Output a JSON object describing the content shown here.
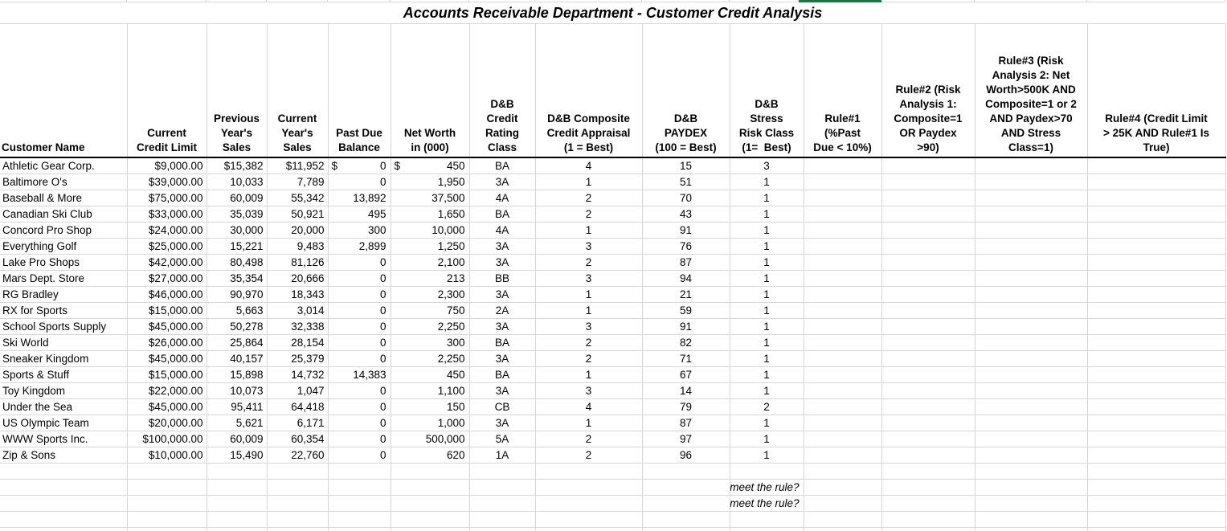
{
  "title": "Accounts Receivable Department - Customer Credit Analysis",
  "columns": [
    {
      "id": "customer_name",
      "label": "Customer Name"
    },
    {
      "id": "credit_limit",
      "label": "Current\nCredit Limit"
    },
    {
      "id": "prev_sales",
      "label": "Previous\nYear's\nSales"
    },
    {
      "id": "curr_sales",
      "label": "Current\nYear's\nSales"
    },
    {
      "id": "past_due",
      "label": "Past Due\nBalance"
    },
    {
      "id": "net_worth",
      "label": "Net Worth\nin (000)"
    },
    {
      "id": "rating_class",
      "label": "D&B\nCredit\nRating\nClass"
    },
    {
      "id": "composite",
      "label": "D&B Composite\nCredit Appraisal\n(1 = Best)"
    },
    {
      "id": "paydex",
      "label": "D&B\nPAYDEX\n(100 = Best)"
    },
    {
      "id": "stress",
      "label": "D&B\nStress\nRisk Class\n(1=  Best)"
    },
    {
      "id": "rule1",
      "label": "Rule#1\n(%Past\nDue < 10%)"
    },
    {
      "id": "rule2",
      "label": "Rule#2 (Risk\nAnalysis 1:\nComposite=1\nOR Paydex\n>90)"
    },
    {
      "id": "rule3",
      "label": "Rule#3 (Risk\nAnalysis 2: Net\nWorth>500K AND\nComposite=1 or 2\nAND Paydex>70\nAND Stress\nClass=1)"
    },
    {
      "id": "rule4",
      "label": "Rule#4 (Credit Limit\n> 25K AND Rule#1 Is\nTrue)"
    }
  ],
  "rows": [
    {
      "customer_name": "Athletic Gear Corp.",
      "credit_limit": "$9,000.00",
      "prev_sales": "$15,382",
      "curr_sales": "$11,952",
      "past_due": {
        "prefix": "$",
        "value": "0"
      },
      "net_worth": {
        "prefix": "$",
        "value": "450"
      },
      "rating_class": "BA",
      "composite": "4",
      "paydex": "15",
      "stress": "3",
      "rule1": "",
      "rule2": "",
      "rule3": "",
      "rule4": ""
    },
    {
      "customer_name": "Baltimore O's",
      "credit_limit": "$39,000.00",
      "prev_sales": "10,033",
      "curr_sales": "7,789",
      "past_due": {
        "prefix": "",
        "value": "0"
      },
      "net_worth": {
        "prefix": "",
        "value": "1,950"
      },
      "rating_class": "3A",
      "composite": "1",
      "paydex": "51",
      "stress": "1",
      "rule1": "",
      "rule2": "",
      "rule3": "",
      "rule4": ""
    },
    {
      "customer_name": "Baseball & More",
      "credit_limit": "$75,000.00",
      "prev_sales": "60,009",
      "curr_sales": "55,342",
      "past_due": {
        "prefix": "",
        "value": "13,892"
      },
      "net_worth": {
        "prefix": "",
        "value": "37,500"
      },
      "rating_class": "4A",
      "composite": "2",
      "paydex": "70",
      "stress": "1",
      "rule1": "",
      "rule2": "",
      "rule3": "",
      "rule4": ""
    },
    {
      "customer_name": "Canadian Ski Club",
      "credit_limit": "$33,000.00",
      "prev_sales": "35,039",
      "curr_sales": "50,921",
      "past_due": {
        "prefix": "",
        "value": "495"
      },
      "net_worth": {
        "prefix": "",
        "value": "1,650"
      },
      "rating_class": "BA",
      "composite": "2",
      "paydex": "43",
      "stress": "1",
      "rule1": "",
      "rule2": "",
      "rule3": "",
      "rule4": ""
    },
    {
      "customer_name": "Concord Pro Shop",
      "credit_limit": "$24,000.00",
      "prev_sales": "30,000",
      "curr_sales": "20,000",
      "past_due": {
        "prefix": "",
        "value": "300"
      },
      "net_worth": {
        "prefix": "",
        "value": "10,000"
      },
      "rating_class": "4A",
      "composite": "1",
      "paydex": "91",
      "stress": "1",
      "rule1": "",
      "rule2": "",
      "rule3": "",
      "rule4": ""
    },
    {
      "customer_name": "Everything Golf",
      "credit_limit": "$25,000.00",
      "prev_sales": "15,221",
      "curr_sales": "9,483",
      "past_due": {
        "prefix": "",
        "value": "2,899"
      },
      "net_worth": {
        "prefix": "",
        "value": "1,250"
      },
      "rating_class": "3A",
      "composite": "3",
      "paydex": "76",
      "stress": "1",
      "rule1": "",
      "rule2": "",
      "rule3": "",
      "rule4": ""
    },
    {
      "customer_name": "Lake Pro Shops",
      "credit_limit": "$42,000.00",
      "prev_sales": "80,498",
      "curr_sales": "81,126",
      "past_due": {
        "prefix": "",
        "value": "0"
      },
      "net_worth": {
        "prefix": "",
        "value": "2,100"
      },
      "rating_class": "3A",
      "composite": "2",
      "paydex": "87",
      "stress": "1",
      "rule1": "",
      "rule2": "",
      "rule3": "",
      "rule4": ""
    },
    {
      "customer_name": "Mars Dept. Store",
      "credit_limit": "$27,000.00",
      "prev_sales": "35,354",
      "curr_sales": "20,666",
      "past_due": {
        "prefix": "",
        "value": "0"
      },
      "net_worth": {
        "prefix": "",
        "value": "213"
      },
      "rating_class": "BB",
      "composite": "3",
      "paydex": "94",
      "stress": "1",
      "rule1": "",
      "rule2": "",
      "rule3": "",
      "rule4": ""
    },
    {
      "customer_name": "RG Bradley",
      "credit_limit": "$46,000.00",
      "prev_sales": "90,970",
      "curr_sales": "18,343",
      "past_due": {
        "prefix": "",
        "value": "0"
      },
      "net_worth": {
        "prefix": "",
        "value": "2,300"
      },
      "rating_class": "3A",
      "composite": "1",
      "paydex": "21",
      "stress": "1",
      "rule1": "",
      "rule2": "",
      "rule3": "",
      "rule4": ""
    },
    {
      "customer_name": "RX for Sports",
      "credit_limit": "$15,000.00",
      "prev_sales": "5,663",
      "curr_sales": "3,014",
      "past_due": {
        "prefix": "",
        "value": "0"
      },
      "net_worth": {
        "prefix": "",
        "value": "750"
      },
      "rating_class": "2A",
      "composite": "1",
      "paydex": "59",
      "stress": "1",
      "rule1": "",
      "rule2": "",
      "rule3": "",
      "rule4": ""
    },
    {
      "customer_name": "School Sports Supply",
      "credit_limit": "$45,000.00",
      "prev_sales": "50,278",
      "curr_sales": "32,338",
      "past_due": {
        "prefix": "",
        "value": "0"
      },
      "net_worth": {
        "prefix": "",
        "value": "2,250"
      },
      "rating_class": "3A",
      "composite": "3",
      "paydex": "91",
      "stress": "1",
      "rule1": "",
      "rule2": "",
      "rule3": "",
      "rule4": ""
    },
    {
      "customer_name": "Ski World",
      "credit_limit": "$26,000.00",
      "prev_sales": "25,864",
      "curr_sales": "28,154",
      "past_due": {
        "prefix": "",
        "value": "0"
      },
      "net_worth": {
        "prefix": "",
        "value": "300"
      },
      "rating_class": "BA",
      "composite": "2",
      "paydex": "82",
      "stress": "1",
      "rule1": "",
      "rule2": "",
      "rule3": "",
      "rule4": ""
    },
    {
      "customer_name": "Sneaker Kingdom",
      "credit_limit": "$45,000.00",
      "prev_sales": "40,157",
      "curr_sales": "25,379",
      "past_due": {
        "prefix": "",
        "value": "0"
      },
      "net_worth": {
        "prefix": "",
        "value": "2,250"
      },
      "rating_class": "3A",
      "composite": "2",
      "paydex": "71",
      "stress": "1",
      "rule1": "",
      "rule2": "",
      "rule3": "",
      "rule4": ""
    },
    {
      "customer_name": "Sports & Stuff",
      "credit_limit": "$15,000.00",
      "prev_sales": "15,898",
      "curr_sales": "14,732",
      "past_due": {
        "prefix": "",
        "value": "14,383"
      },
      "net_worth": {
        "prefix": "",
        "value": "450"
      },
      "rating_class": "BA",
      "composite": "1",
      "paydex": "67",
      "stress": "1",
      "rule1": "",
      "rule2": "",
      "rule3": "",
      "rule4": ""
    },
    {
      "customer_name": "Toy Kingdom",
      "credit_limit": "$22,000.00",
      "prev_sales": "10,073",
      "curr_sales": "1,047",
      "past_due": {
        "prefix": "",
        "value": "0"
      },
      "net_worth": {
        "prefix": "",
        "value": "1,100"
      },
      "rating_class": "3A",
      "composite": "3",
      "paydex": "14",
      "stress": "1",
      "rule1": "",
      "rule2": "",
      "rule3": "",
      "rule4": ""
    },
    {
      "customer_name": "Under the Sea",
      "credit_limit": "$45,000.00",
      "prev_sales": "95,411",
      "curr_sales": "64,418",
      "past_due": {
        "prefix": "",
        "value": "0"
      },
      "net_worth": {
        "prefix": "",
        "value": "150"
      },
      "rating_class": "CB",
      "composite": "4",
      "paydex": "79",
      "stress": "2",
      "rule1": "",
      "rule2": "",
      "rule3": "",
      "rule4": ""
    },
    {
      "customer_name": "US Olympic Team",
      "credit_limit": "$20,000.00",
      "prev_sales": "5,621",
      "curr_sales": "6,171",
      "past_due": {
        "prefix": "",
        "value": "0"
      },
      "net_worth": {
        "prefix": "",
        "value": "1,000"
      },
      "rating_class": "3A",
      "composite": "1",
      "paydex": "87",
      "stress": "1",
      "rule1": "",
      "rule2": "",
      "rule3": "",
      "rule4": ""
    },
    {
      "customer_name": "WWW Sports Inc.",
      "credit_limit": "$100,000.00",
      "prev_sales": "60,009",
      "curr_sales": "60,354",
      "past_due": {
        "prefix": "",
        "value": "0"
      },
      "net_worth": {
        "prefix": "",
        "value": "500,000"
      },
      "rating_class": "5A",
      "composite": "2",
      "paydex": "97",
      "stress": "1",
      "rule1": "",
      "rule2": "",
      "rule3": "",
      "rule4": ""
    },
    {
      "customer_name": "Zip & Sons",
      "credit_limit": "$10,000.00",
      "prev_sales": "15,490",
      "curr_sales": "22,760",
      "past_due": {
        "prefix": "",
        "value": "0"
      },
      "net_worth": {
        "prefix": "",
        "value": "620"
      },
      "rating_class": "1A",
      "composite": "2",
      "paydex": "96",
      "stress": "1",
      "rule1": "",
      "rule2": "",
      "rule3": "",
      "rule4": ""
    }
  ],
  "footer": {
    "any": "Do any meet the rule?",
    "none": "Do none meet the rule?"
  },
  "colors": {
    "selection_green": "#217346",
    "gridline": "#d6d6d6"
  }
}
